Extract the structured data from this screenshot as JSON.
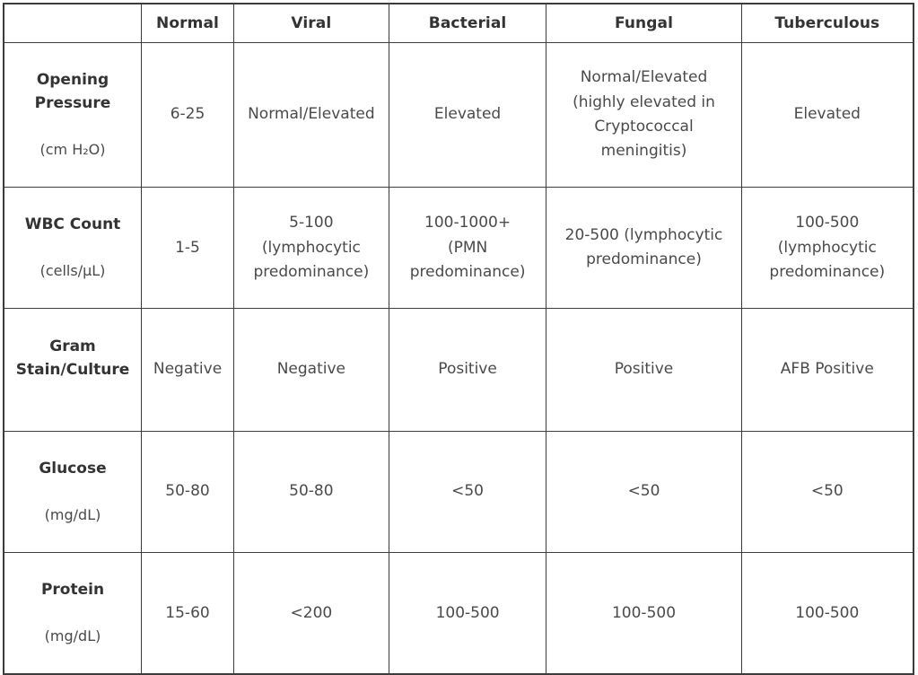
{
  "colors": {
    "border": "#3c3c3c",
    "header_text": "#333333",
    "cell_text": "#4a4a4a",
    "background": "#ffffff"
  },
  "table": {
    "header": [
      "",
      "Normal",
      "Viral",
      "Bacterial",
      "Fungal",
      "Tuberculous"
    ],
    "rows": [
      {
        "label": "Opening\nPressure",
        "unit": "(cm H₂O)",
        "values": [
          "6-25",
          "Normal/Elevated",
          "Elevated",
          "Normal/Elevated\n(highly elevated in\nCryptococcal\nmeningitis)",
          "Elevated"
        ]
      },
      {
        "label": "WBC Count",
        "unit": "(cells/μL)",
        "values": [
          "1-5",
          "5-100\n(lymphocytic\npredominance)",
          "100-1000+\n(PMN\npredominance)",
          "20-500 (lymphocytic\npredominance)",
          "100-500\n(lymphocytic\npredominance)"
        ]
      },
      {
        "label": "Gram\nStain/Culture",
        "unit": "",
        "values": [
          "Negative",
          "Negative",
          "Positive",
          "Positive",
          "AFB Positive"
        ]
      },
      {
        "label": "Glucose",
        "unit": "(mg/dL)",
        "values": [
          "50-80",
          "50-80",
          "<50",
          "<50",
          "<50"
        ]
      },
      {
        "label": "Protein",
        "unit": "(mg/dL)",
        "values": [
          "15-60",
          "<200",
          "100-500",
          "100-500",
          "100-500"
        ]
      }
    ]
  }
}
